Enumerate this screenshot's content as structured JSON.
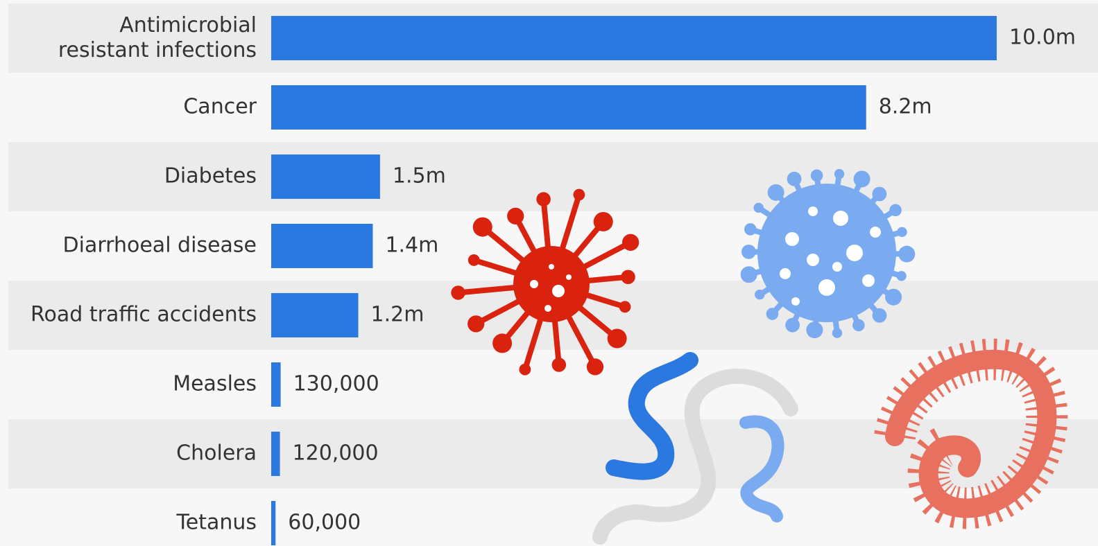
{
  "chart_data": {
    "type": "bar",
    "orientation": "horizontal",
    "color": "#2b78e0",
    "categories": [
      "Antimicrobial resistant infections",
      "Cancer",
      "Diabetes",
      "Diarrhoeal disease",
      "Road traffic accidents",
      "Measles",
      "Cholera",
      "Tetanus"
    ],
    "values": [
      10000000,
      8200000,
      1500000,
      1400000,
      1200000,
      130000,
      120000,
      60000
    ],
    "value_labels": [
      "10.0m",
      "8.2m",
      "1.5m",
      "1.4m",
      "1.2m",
      "130,000",
      "120,000",
      "60,000"
    ]
  }
}
